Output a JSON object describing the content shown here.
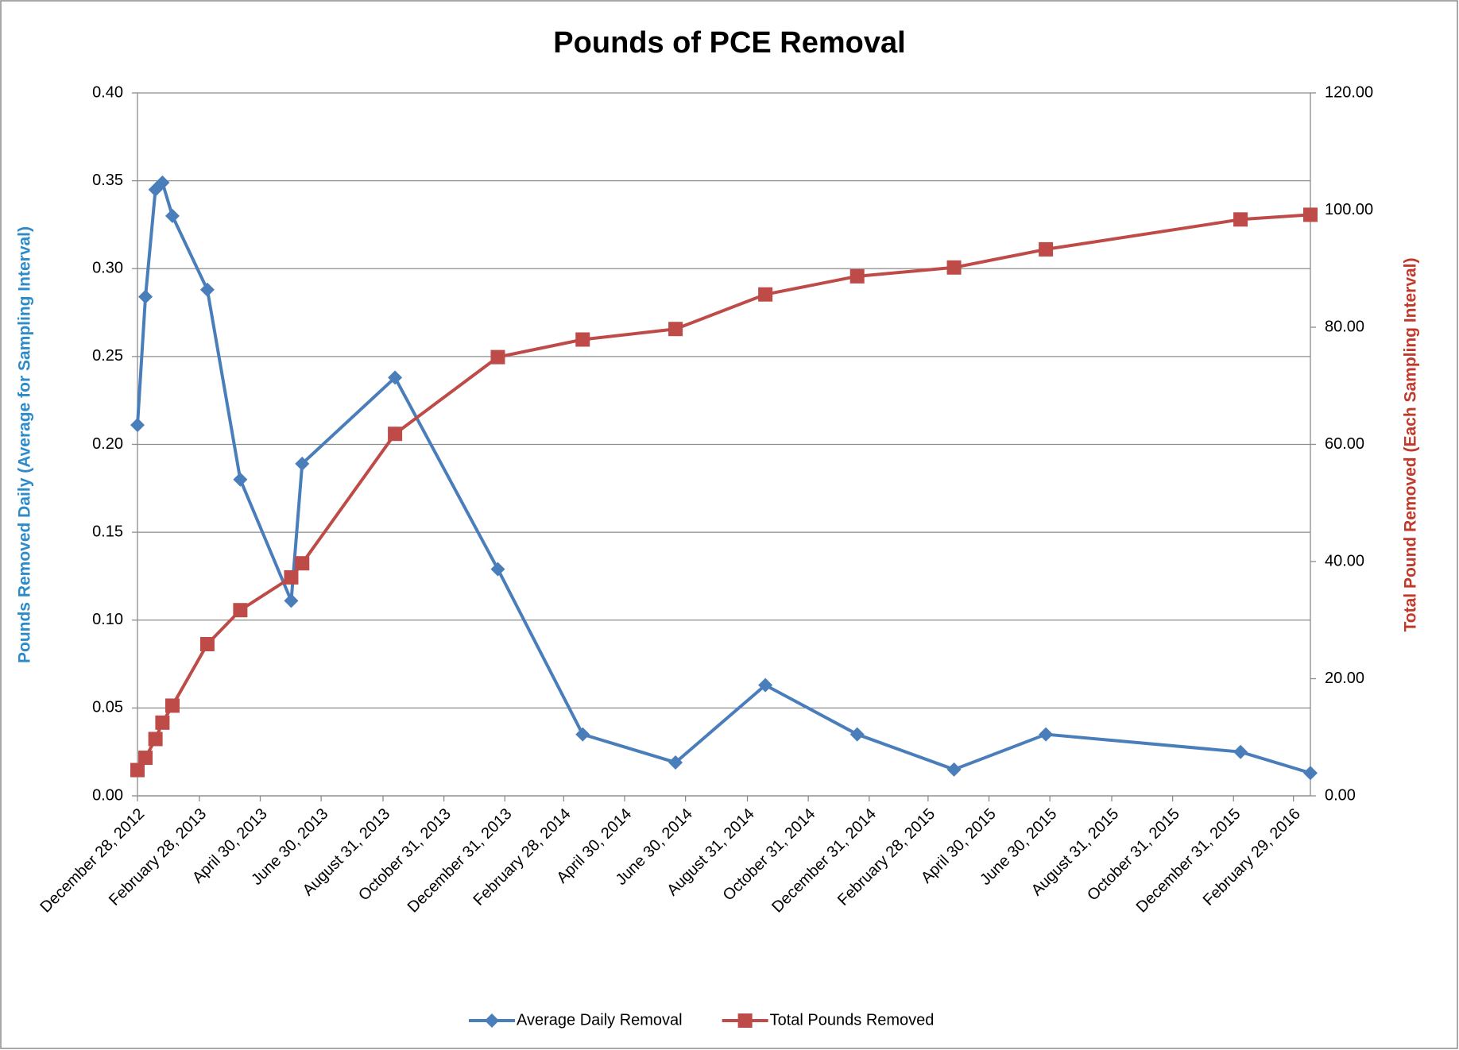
{
  "chart_data": {
    "type": "line",
    "title": "Pounds of PCE Removal",
    "y_label": "Pounds Removed Daily (Average for Sampling Interval)",
    "y2_label": "Total Pound Removed (Each Sampling Interval)",
    "x": [
      "2012-12-28",
      "2013-01-05",
      "2013-01-15",
      "2013-01-22",
      "2013-02-01",
      "2013-03-08",
      "2013-04-10",
      "2013-05-31",
      "2013-06-11",
      "2013-09-12",
      "2013-12-24",
      "2014-03-19",
      "2014-06-20",
      "2014-09-18",
      "2014-12-19",
      "2015-03-26",
      "2015-06-26",
      "2016-01-07",
      "2016-03-17"
    ],
    "xlim": [
      "2012-12-28",
      "2016-03-17"
    ],
    "xticks": [
      {
        "value": "2012-12-28",
        "label": "December 28, 2012"
      },
      {
        "value": "2013-02-28",
        "label": "February 28, 2013"
      },
      {
        "value": "2013-04-30",
        "label": "April 30, 2013"
      },
      {
        "value": "2013-06-30",
        "label": "June 30, 2013"
      },
      {
        "value": "2013-08-31",
        "label": "August 31, 2013"
      },
      {
        "value": "2013-10-31",
        "label": "October 31, 2013"
      },
      {
        "value": "2013-12-31",
        "label": "December 31, 2013"
      },
      {
        "value": "2014-02-28",
        "label": "February 28, 2014"
      },
      {
        "value": "2014-04-30",
        "label": "April 30, 2014"
      },
      {
        "value": "2014-06-30",
        "label": "June 30, 2014"
      },
      {
        "value": "2014-08-31",
        "label": "August 31, 2014"
      },
      {
        "value": "2014-10-31",
        "label": "October 31, 2014"
      },
      {
        "value": "2014-12-31",
        "label": "December 31, 2014"
      },
      {
        "value": "2015-02-28",
        "label": "February 28, 2015"
      },
      {
        "value": "2015-04-30",
        "label": "April 30, 2015"
      },
      {
        "value": "2015-06-30",
        "label": "June 30, 2015"
      },
      {
        "value": "2015-08-31",
        "label": "August 31, 2015"
      },
      {
        "value": "2015-10-31",
        "label": "October 31, 2015"
      },
      {
        "value": "2015-12-31",
        "label": "December 31, 2015"
      },
      {
        "value": "2016-02-29",
        "label": "February 29, 2016"
      }
    ],
    "ylim": [
      0,
      0.4
    ],
    "yticks": [
      {
        "value": 0,
        "label": "0.00"
      },
      {
        "value": 0.05,
        "label": "0.05"
      },
      {
        "value": 0.1,
        "label": "0.10"
      },
      {
        "value": 0.15,
        "label": "0.15"
      },
      {
        "value": 0.2,
        "label": "0.20"
      },
      {
        "value": 0.25,
        "label": "0.25"
      },
      {
        "value": 0.3,
        "label": "0.30"
      },
      {
        "value": 0.35,
        "label": "0.35"
      },
      {
        "value": 0.4,
        "label": "0.40"
      }
    ],
    "y2lim": [
      0,
      120
    ],
    "y2ticks": [
      {
        "value": 0,
        "label": "0.00"
      },
      {
        "value": 20,
        "label": "20.00"
      },
      {
        "value": 40,
        "label": "40.00"
      },
      {
        "value": 60,
        "label": "60.00"
      },
      {
        "value": 80,
        "label": "80.00"
      },
      {
        "value": 100,
        "label": "100.00"
      },
      {
        "value": 120,
        "label": "120.00"
      }
    ],
    "grid": true,
    "legend": "bottom",
    "series": [
      {
        "name": "Average Daily Removal",
        "color": "#4a7ebb",
        "marker": "diamond",
        "axis": "y",
        "values": [
          0.211,
          0.284,
          0.345,
          0.349,
          0.33,
          0.288,
          0.18,
          0.111,
          0.189,
          0.238,
          0.129,
          0.035,
          0.019,
          0.063,
          0.035,
          0.015,
          0.035,
          0.025,
          0.013
        ]
      },
      {
        "name": "Total Pounds Removed",
        "color": "#be4b48",
        "marker": "square",
        "axis": "y2",
        "values": [
          4.4,
          6.5,
          9.7,
          12.5,
          15.4,
          25.9,
          31.7,
          37.3,
          39.7,
          61.8,
          74.9,
          77.9,
          79.7,
          85.6,
          88.7,
          90.2,
          93.3,
          98.4,
          99.2
        ]
      }
    ]
  }
}
